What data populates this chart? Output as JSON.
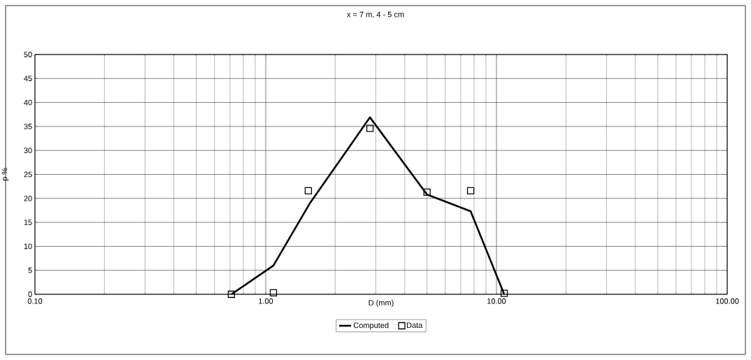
{
  "chart_data": {
    "type": "line",
    "title": "x = 7 m, 4 - 5 cm",
    "xlabel": "D (mm)",
    "ylabel": "p %",
    "log": "x",
    "grid": true,
    "legend": "bottom",
    "xlim": [
      0.1,
      100
    ],
    "xticks": [
      {
        "value": 0.1,
        "label": "0.10"
      },
      {
        "value": 1,
        "label": "1.00"
      },
      {
        "value": 10,
        "label": "10.00"
      },
      {
        "value": 100,
        "label": "100.00"
      }
    ],
    "ylim": [
      0,
      50
    ],
    "yticks": [
      0,
      5,
      10,
      15,
      20,
      25,
      30,
      35,
      40,
      45,
      50
    ],
    "series": [
      {
        "name": "Computed",
        "type": "line",
        "color": "#000000",
        "marker": "none",
        "line_style": "solid",
        "x": [
          0.71,
          1.08,
          1.55,
          2.83,
          5.0,
          7.73,
          10.8
        ],
        "values": [
          0,
          6.0,
          18.9,
          36.9,
          20.8,
          17.3,
          0
        ]
      },
      {
        "name": "Data",
        "type": "scatter",
        "color": "#000000",
        "marker": "square",
        "x": [
          0.71,
          1.08,
          1.53,
          2.83,
          5.0,
          7.73,
          10.8
        ],
        "values": [
          0,
          0.3,
          21.6,
          34.6,
          21.3,
          21.6,
          0.2
        ]
      }
    ]
  }
}
